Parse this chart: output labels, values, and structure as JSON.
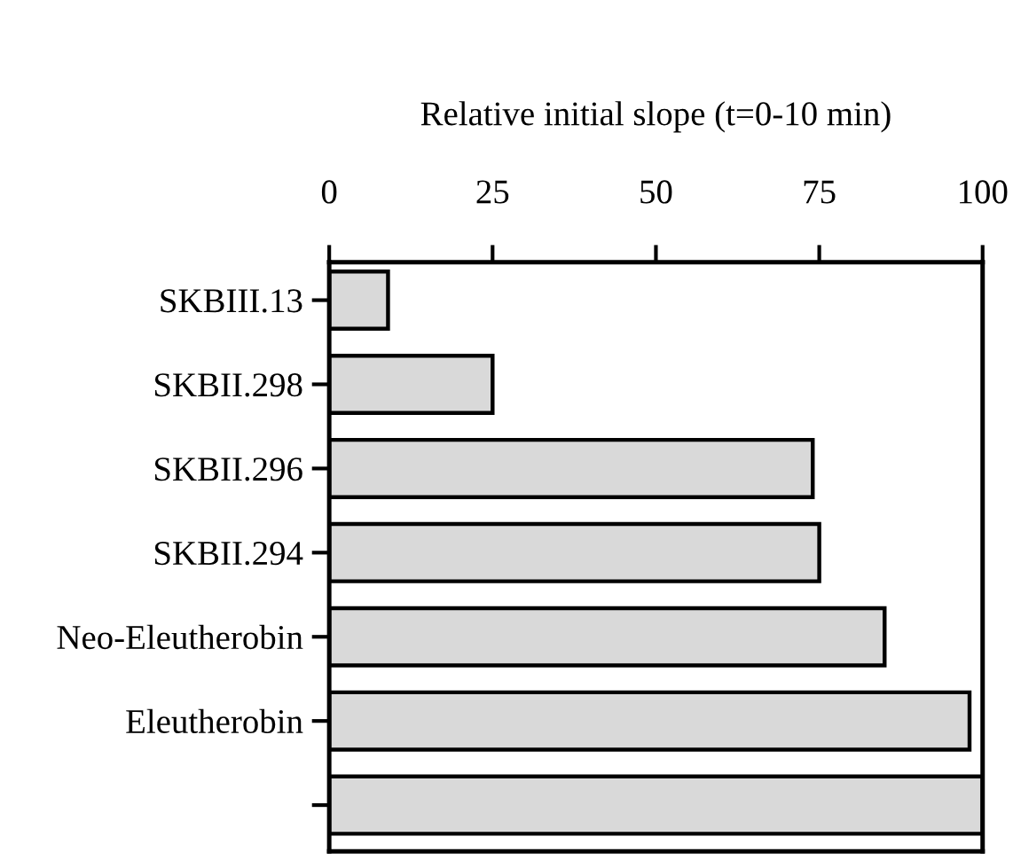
{
  "chart_data": {
    "type": "bar",
    "orientation": "horizontal",
    "xlabel": "Relative initial slope (t=0-10 min)",
    "categories": [
      "SKBIII.13",
      "SKBII.298",
      "SKBII.296",
      "SKBII.294",
      "Neo-Eleutherobin",
      "Eleutherobin",
      null
    ],
    "values": [
      9,
      25,
      74,
      75,
      85,
      98,
      100
    ],
    "color": "#d9d9d9",
    "xlim": [
      0,
      100
    ],
    "xticks": [
      0,
      25,
      50,
      75,
      100
    ],
    "grid": false,
    "legend": false
  }
}
